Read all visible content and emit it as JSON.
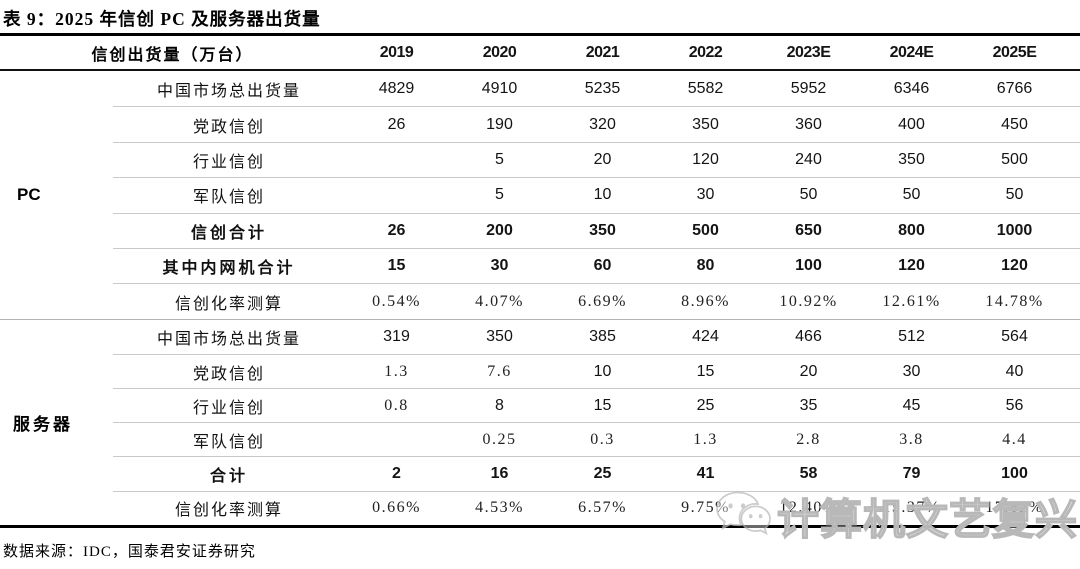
{
  "title": "表 9：2025 年信创 PC 及服务器出货量",
  "table": {
    "header": {
      "label": "信创出货量（万台）",
      "years": [
        "2019",
        "2020",
        "2021",
        "2022",
        "2023E",
        "2024E",
        "2025E"
      ]
    },
    "groups": [
      {
        "name": "PC",
        "rows": [
          {
            "label": "中国市场总出货量",
            "bold": false,
            "values": [
              "4829",
              "4910",
              "5235",
              "5582",
              "5952",
              "6346",
              "6766"
            ]
          },
          {
            "label": "党政信创",
            "bold": false,
            "values": [
              "26",
              "190",
              "320",
              "350",
              "360",
              "400",
              "450"
            ]
          },
          {
            "label": "行业信创",
            "bold": false,
            "values": [
              "",
              "5",
              "20",
              "120",
              "240",
              "350",
              "500"
            ]
          },
          {
            "label": "军队信创",
            "bold": false,
            "values": [
              "",
              "5",
              "10",
              "30",
              "50",
              "50",
              "50"
            ]
          },
          {
            "label": "信创合计",
            "bold": true,
            "values": [
              "26",
              "200",
              "350",
              "500",
              "650",
              "800",
              "1000"
            ]
          },
          {
            "label": "其中内网机合计",
            "bold": true,
            "values": [
              "15",
              "30",
              "60",
              "80",
              "100",
              "120",
              "120"
            ]
          },
          {
            "label": "信创化率测算",
            "bold": false,
            "values": [
              "0.54%",
              "4.07%",
              "6.69%",
              "8.96%",
              "10.92%",
              "12.61%",
              "14.78%"
            ]
          }
        ]
      },
      {
        "name": "服务器",
        "rows": [
          {
            "label": "中国市场总出货量",
            "bold": false,
            "values": [
              "319",
              "350",
              "385",
              "424",
              "466",
              "512",
              "564"
            ]
          },
          {
            "label": "党政信创",
            "bold": false,
            "values": [
              "1.3",
              "7.6",
              "10",
              "15",
              "20",
              "30",
              "40"
            ]
          },
          {
            "label": "行业信创",
            "bold": false,
            "values": [
              "0.8",
              "8",
              "15",
              "25",
              "35",
              "45",
              "56"
            ]
          },
          {
            "label": "军队信创",
            "bold": false,
            "values": [
              "",
              "0.25",
              "0.3",
              "1.3",
              "2.8",
              "3.8",
              "4.4"
            ]
          },
          {
            "label": "合计",
            "bold": true,
            "values": [
              "2",
              "16",
              "25",
              "41",
              "58",
              "79",
              "100"
            ]
          },
          {
            "label": "信创化率测算",
            "bold": false,
            "values": [
              "0.66%",
              "4.53%",
              "6.57%",
              "9.75%",
              "12.40%",
              "15.37%",
              "17.82%"
            ]
          }
        ]
      }
    ]
  },
  "footer": {
    "source": "数据来源：IDC，国泰君安证券研究"
  },
  "watermark": {
    "text": "计算机文艺复兴",
    "icon": "wechat-icon",
    "stroke_color": "#b8b8b8"
  },
  "colors": {
    "rule_dark": "#000000",
    "rule_light": "#c9c9c9",
    "text": "#141414"
  }
}
